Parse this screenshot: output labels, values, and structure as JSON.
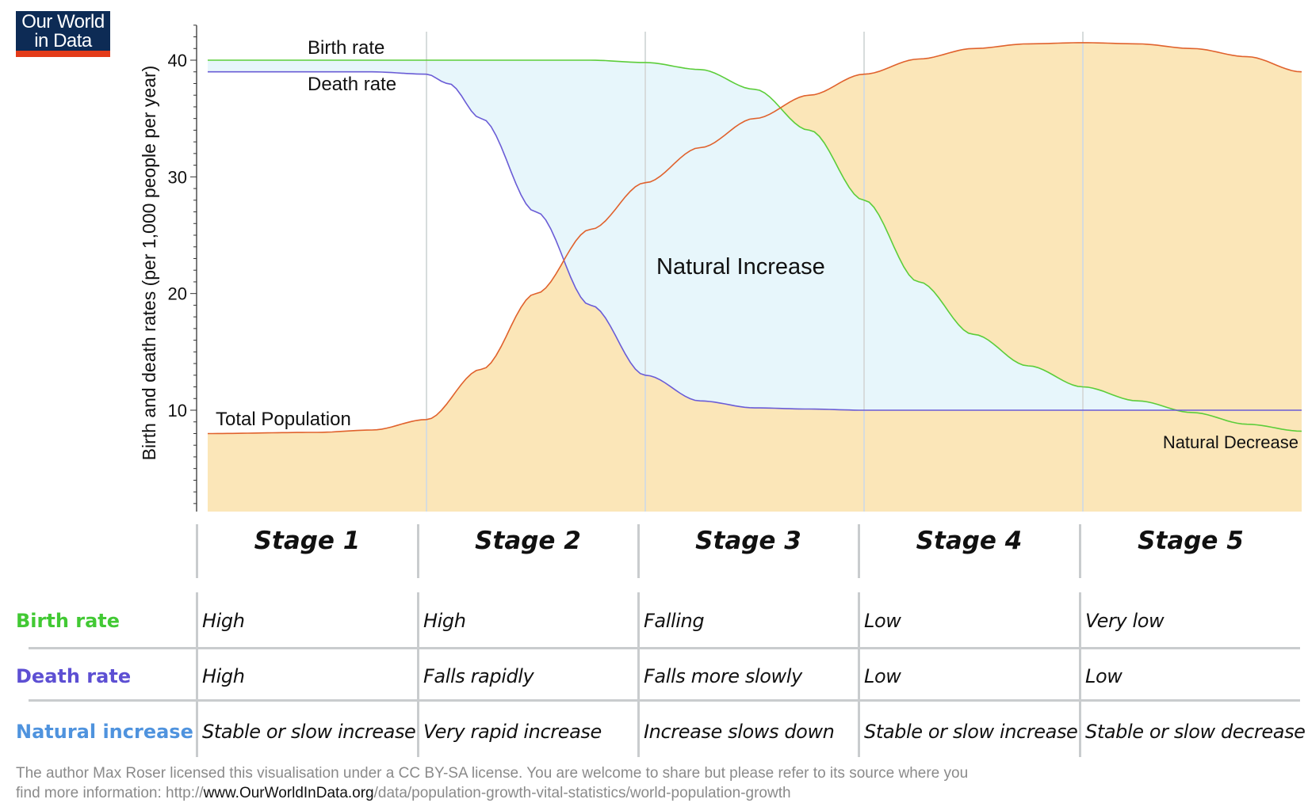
{
  "logo": {
    "line1": "Our World",
    "line2": "in Data"
  },
  "chart_data": {
    "type": "line",
    "ylabel": "Birth and death rates (per 1,000 people per year)",
    "yticks": [
      10,
      20,
      30,
      40
    ],
    "ylim": [
      1,
      44
    ],
    "xlim": [
      0,
      1
    ],
    "stages": [
      "Stage 1",
      "Stage 2",
      "Stage 3",
      "Stage 4",
      "Stage 5"
    ],
    "series": [
      {
        "name": "Birth rate",
        "color": "#5ccd3a",
        "x": [
          0,
          0.05,
          0.1,
          0.15,
          0.2,
          0.25,
          0.3,
          0.35,
          0.4,
          0.45,
          0.5,
          0.55,
          0.6,
          0.65,
          0.7,
          0.75,
          0.8,
          0.85,
          0.9,
          0.95,
          1.0
        ],
        "y": [
          40,
          40,
          40,
          40,
          40,
          40,
          40,
          40,
          39.8,
          39.2,
          37.5,
          34,
          28,
          21,
          16.5,
          13.8,
          12,
          10.8,
          9.8,
          8.8,
          8.2
        ]
      },
      {
        "name": "Death rate",
        "color": "#6a5cd6",
        "x": [
          0,
          0.05,
          0.1,
          0.15,
          0.2,
          0.22,
          0.25,
          0.3,
          0.35,
          0.4,
          0.45,
          0.5,
          0.55,
          0.6,
          0.7,
          0.8,
          0.9,
          1.0
        ],
        "y": [
          39,
          39,
          39,
          39,
          38.8,
          38,
          35,
          27,
          19,
          13,
          10.8,
          10.2,
          10.1,
          10.0,
          10.0,
          10.0,
          10.0,
          10.0
        ]
      },
      {
        "name": "Total Population",
        "color": "#e0622d",
        "x": [
          0,
          0.1,
          0.15,
          0.2,
          0.25,
          0.3,
          0.35,
          0.4,
          0.45,
          0.5,
          0.55,
          0.6,
          0.65,
          0.7,
          0.75,
          0.8,
          0.85,
          0.9,
          0.95,
          1.0
        ],
        "y": [
          8.0,
          8.1,
          8.3,
          9.2,
          13.5,
          20,
          25.5,
          29.5,
          32.5,
          35,
          37,
          38.8,
          40.1,
          41,
          41.4,
          41.5,
          41.4,
          41.0,
          40.3,
          39.0
        ]
      }
    ],
    "annotations": [
      "Natural Increase",
      "Natural Decrease"
    ]
  },
  "table": {
    "rows": [
      {
        "label": "Birth rate",
        "color": "#42c934",
        "cells": [
          "High",
          "High",
          "Falling",
          "Low",
          "Very low"
        ]
      },
      {
        "label": "Death rate",
        "color": "#5d4fd3",
        "cells": [
          "High",
          "Falls rapidly",
          "Falls more slowly",
          "Low",
          "Low"
        ]
      },
      {
        "label": "Natural increase",
        "color": "#4f93de",
        "cells": [
          "Stable or slow increase",
          "Very rapid increase",
          "Increase slows down",
          "Stable or slow increase",
          "Stable or slow decrease"
        ]
      }
    ]
  },
  "footer": {
    "text1": "The author Max Roser licensed this visualisation under a CC BY-SA license. You are welcome to share but please refer to its source where you",
    "text2a": "find more information: http://",
    "text2b": "www.OurWorldInData.org",
    "text2c": "/data/population-growth-vital-statistics/world-population-growth"
  }
}
